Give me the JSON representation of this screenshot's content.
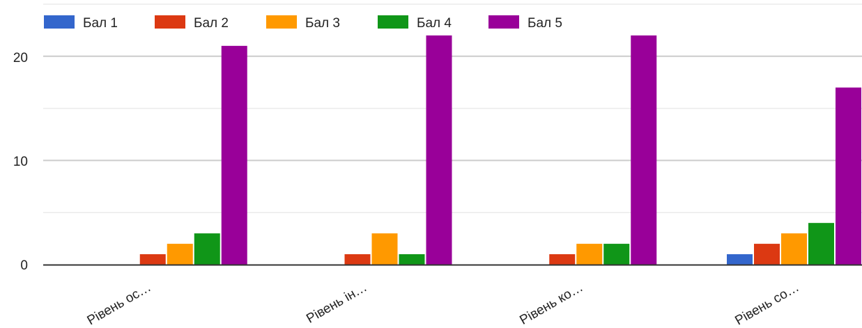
{
  "chart_data": {
    "type": "bar",
    "categories": [
      "Рівень ос…",
      "Рівень ін…",
      "Рівень ко…",
      "Рівень со…"
    ],
    "series": [
      {
        "name": "Бал 1",
        "color": "#3366cc",
        "values": [
          0,
          0,
          0,
          1
        ]
      },
      {
        "name": "Бал 2",
        "color": "#dc3912",
        "values": [
          1,
          1,
          1,
          2
        ]
      },
      {
        "name": "Бал 3",
        "color": "#ff9900",
        "values": [
          2,
          3,
          2,
          3
        ]
      },
      {
        "name": "Бал 4",
        "color": "#109618",
        "values": [
          3,
          1,
          2,
          4
        ]
      },
      {
        "name": "Бал 5",
        "color": "#990099",
        "values": [
          21,
          22,
          22,
          17
        ]
      }
    ],
    "yticks": [
      "0",
      "10",
      "20"
    ],
    "ylim": [
      0,
      25
    ],
    "grid": true,
    "legend_position": "top-left"
  }
}
